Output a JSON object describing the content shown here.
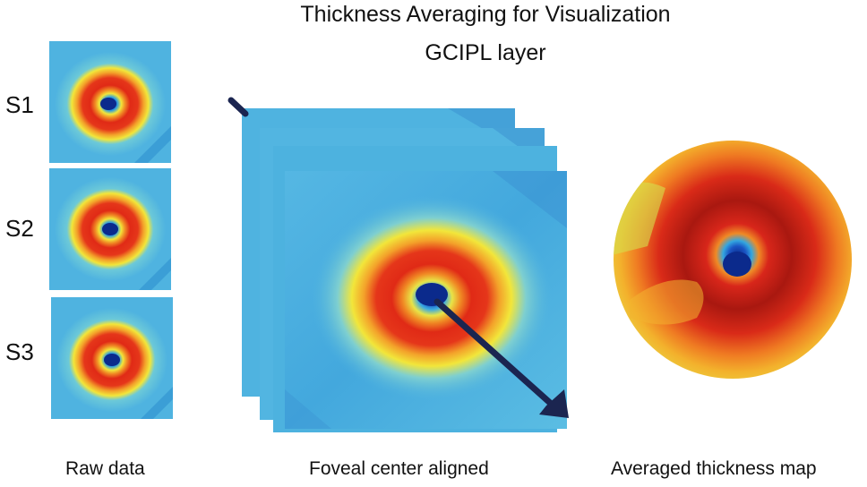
{
  "title": "Thickness Averaging for Visualization",
  "subtitle": "GCIPL layer",
  "subjects": [
    {
      "label": "S1"
    },
    {
      "label": "S2"
    },
    {
      "label": "S3"
    }
  ],
  "captions": {
    "raw": "Raw data",
    "aligned": "Foveal center aligned",
    "averaged": "Averaged thickness map"
  },
  "colors": {
    "background_blue": "#4fb3e0",
    "yellow": "#f2e63a",
    "orange": "#f08a24",
    "red": "#e02a16",
    "dark_red": "#b51a12",
    "fovea_dark": "#0b2a8c",
    "arrow": "#1b2550"
  }
}
